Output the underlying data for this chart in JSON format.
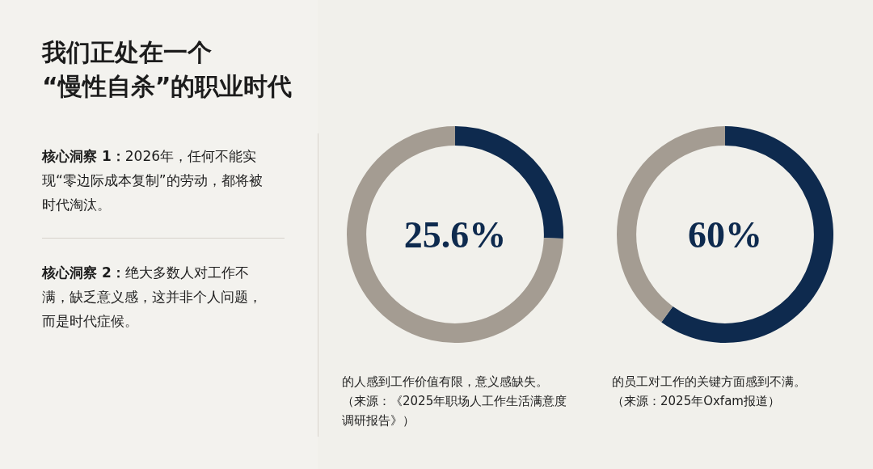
{
  "chart_data": [
    {
      "type": "other",
      "title": "我们正处在一个\n“慢性自杀”的职业时代",
      "annotations": [
        "核心洞察 1：",
        "2026年，任何不能实现“零边际成本复制”的劳动，都将被时代淘汰。",
        "核心洞察 2：",
        "绝大多数人对工作不满，缺乏意义感，这并非个人问题，而是时代症候。"
      ]
    },
    {
      "type": "donut",
      "categories": [
        null,
        null
      ],
      "values": [
        25.6,
        74.4
      ],
      "colors": [
        "#0e2a4e",
        "#a49c92"
      ],
      "annotations": [
        "25.6%",
        "的人感到工作价值有限，意义感缺失。",
        "（来源：《2025年职场人工作生活满意度调研报告》）"
      ]
    },
    {
      "type": "donut",
      "categories": [
        null,
        null
      ],
      "values": [
        60,
        40
      ],
      "colors": [
        "#0e2a4e",
        "#a49c92"
      ],
      "annotations": [
        "60%",
        "的员工对工作的关键方面感到不满。",
        "（来源：2025年Oxfam报道）"
      ]
    }
  ]
}
